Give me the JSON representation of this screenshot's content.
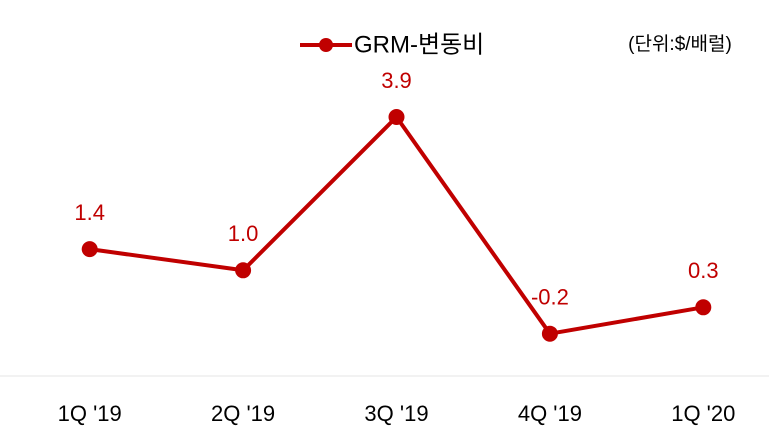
{
  "chart_data": {
    "type": "line",
    "unit_note": "(단위:$/배럴)",
    "categories": [
      "1Q '19",
      "2Q '19",
      "3Q '19",
      "4Q '19",
      "1Q '20"
    ],
    "series": [
      {
        "name": "GRM-변동비",
        "color": "#c00000",
        "values": [
          1.4,
          1.0,
          3.9,
          -0.2,
          0.3
        ],
        "value_labels": [
          "1.4",
          "1.0",
          "3.9",
          "-0.2",
          "0.3"
        ]
      }
    ],
    "ylim": [
      -1,
      6
    ]
  }
}
